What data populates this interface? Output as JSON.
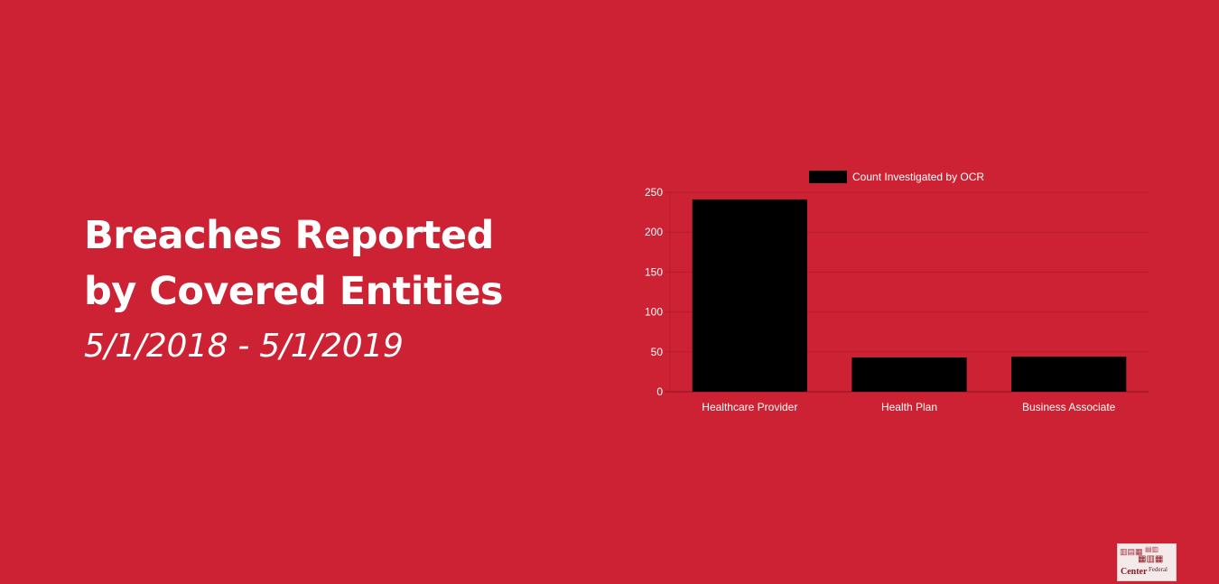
{
  "title": {
    "line1": "Breaches Reported",
    "line2": "by Covered Entities",
    "date_range": "5/1/2018 - 5/1/2019"
  },
  "colors": {
    "background": "#cc2233",
    "bar": "#000000",
    "text": "#ffffff",
    "grid": "#b81c2c"
  },
  "thumbnail": {
    "icon": "word-cloud-icon",
    "words": [
      "Center",
      "Federal"
    ]
  },
  "chart_data": {
    "type": "bar",
    "categories": [
      "Healthcare Provider",
      "Health Plan",
      "Business Associate"
    ],
    "series": [
      {
        "name": "Count Investigated by OCR",
        "values": [
          241,
          43,
          44
        ]
      }
    ],
    "ylim": [
      0,
      250
    ],
    "yticks": [
      0,
      50,
      100,
      150,
      200,
      250
    ],
    "legend_position": "top",
    "grid": true
  }
}
